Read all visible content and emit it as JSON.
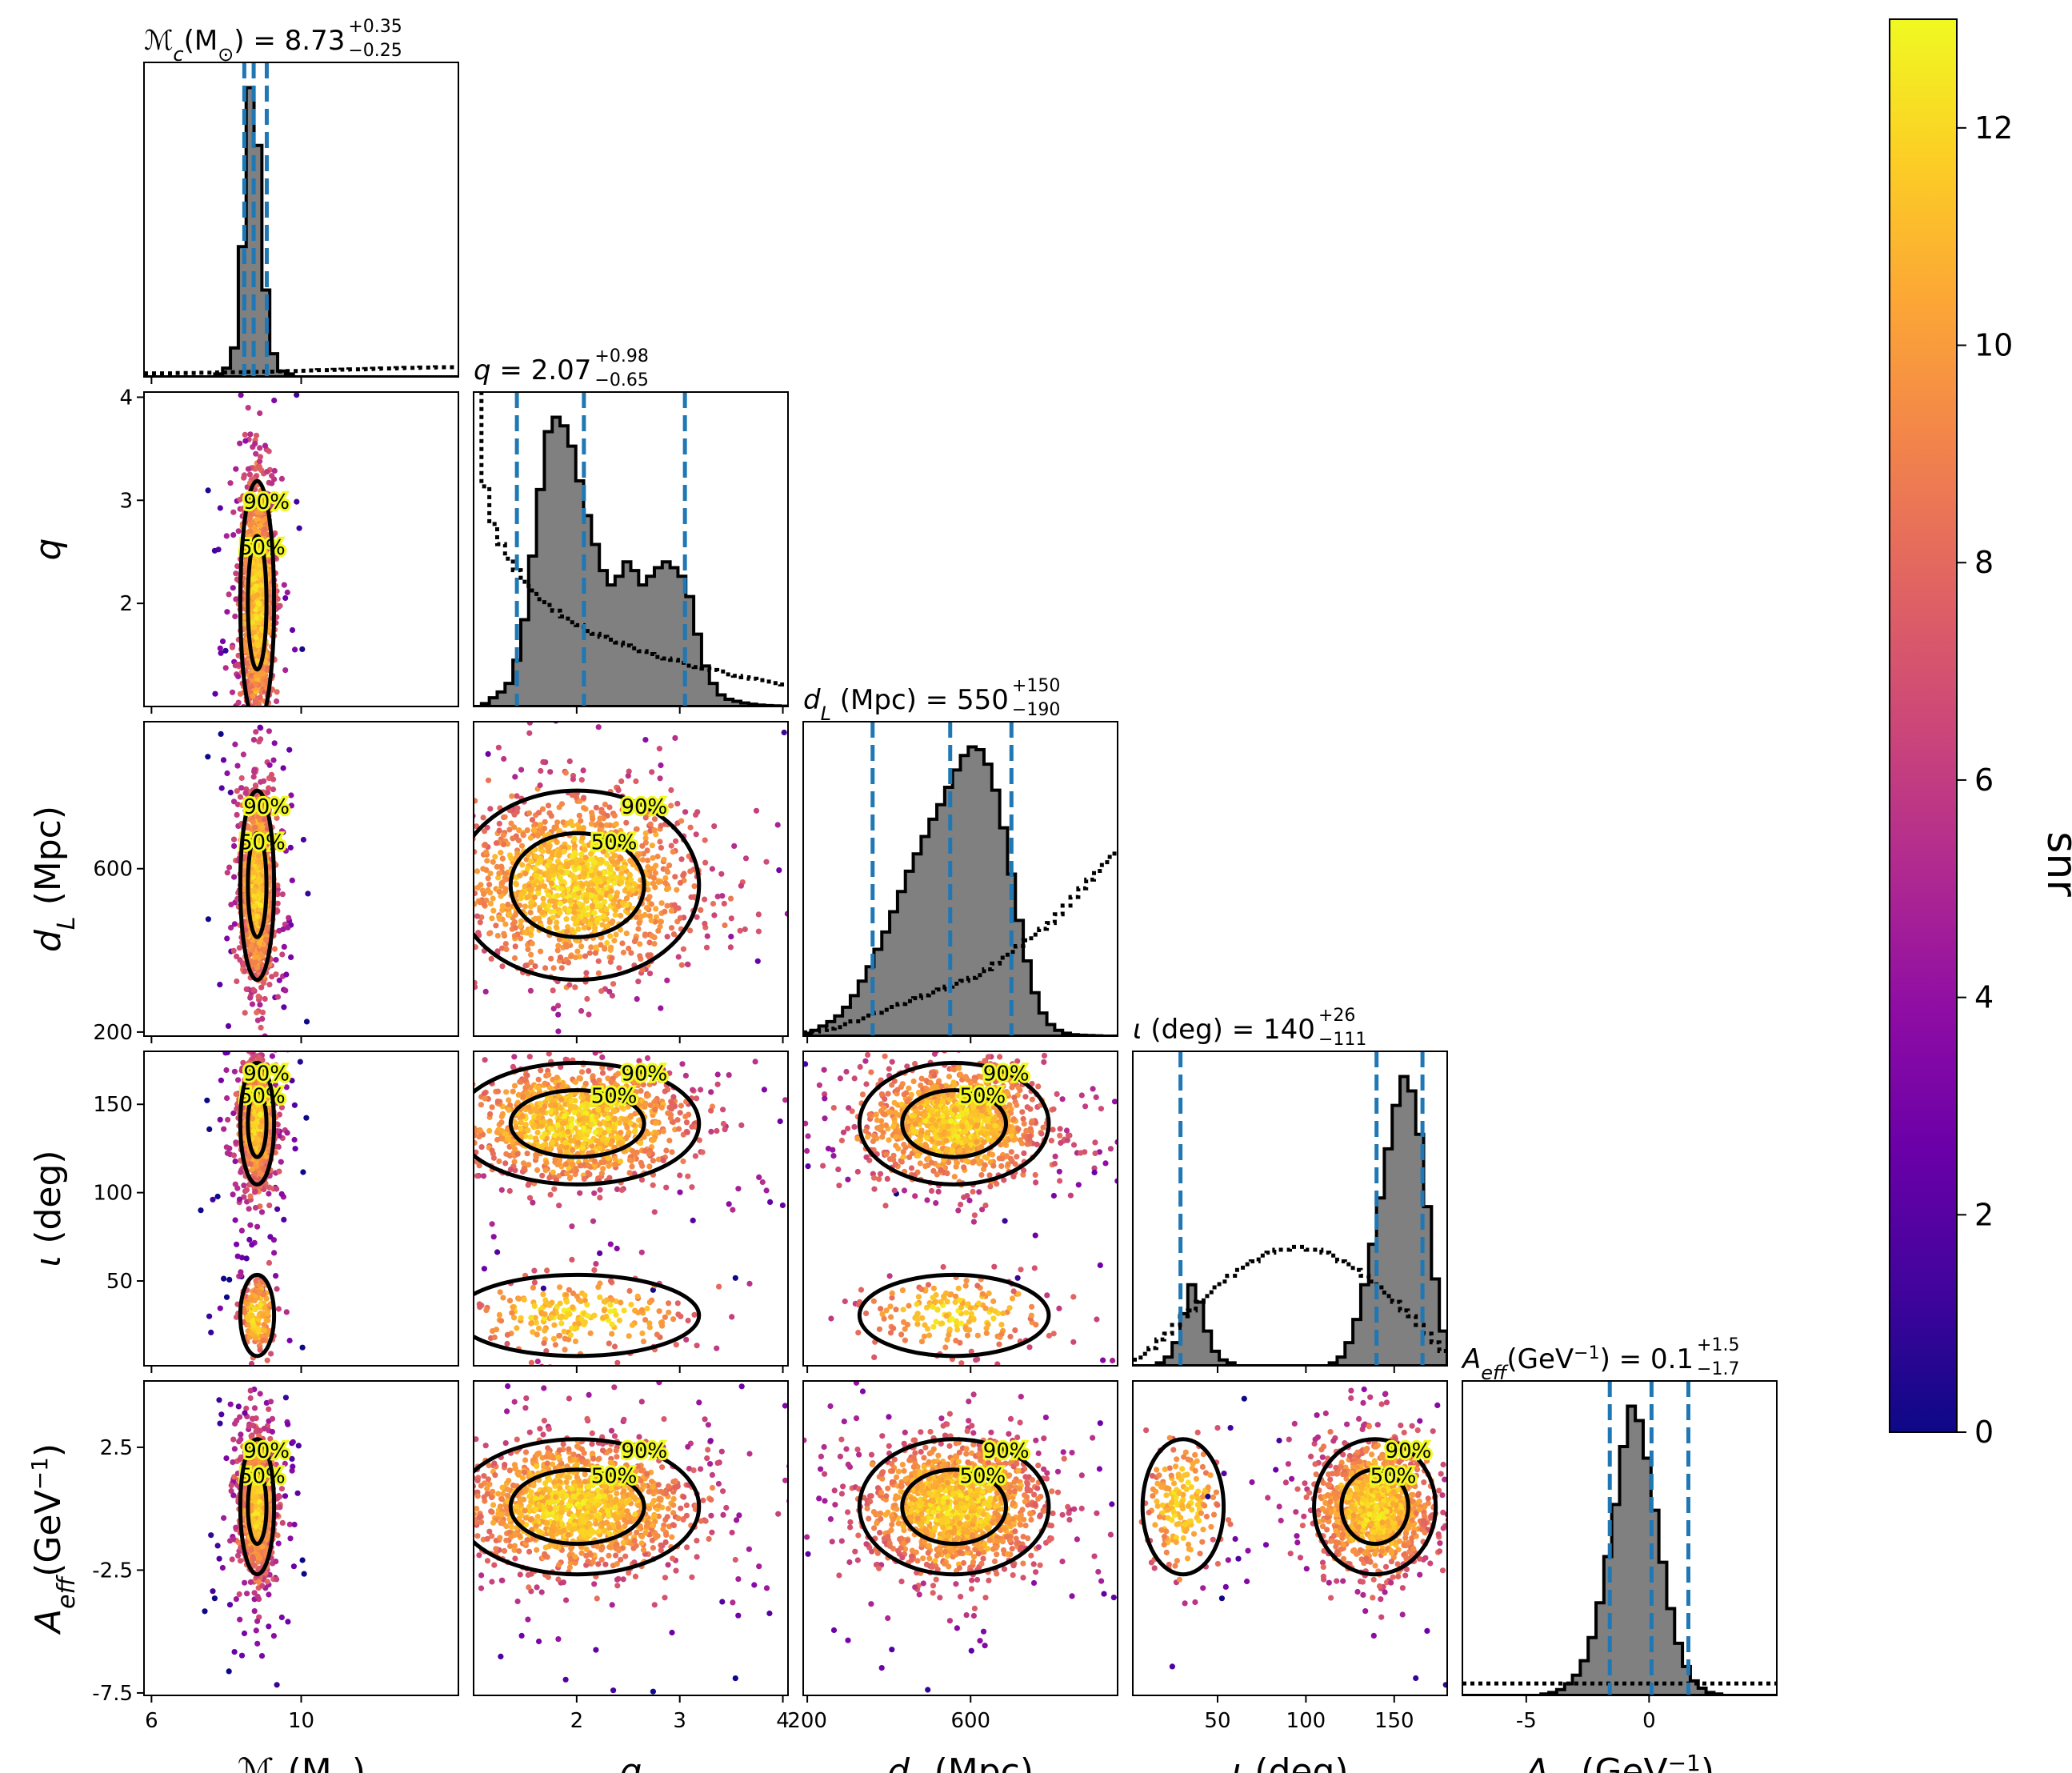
{
  "chart_data": {
    "type": "scatter",
    "variant": "corner-plot",
    "colormap": "plasma",
    "parameters": [
      {
        "id": "mc",
        "label_main": "ℳ",
        "label_sub": "c",
        "label_rest": "(M",
        "label_sun": "⊙",
        "label_close": ")",
        "median_text": "8.73",
        "err_plus": "+0.35",
        "err_minus": "−0.25",
        "range": [
          5.8,
          14.2
        ],
        "ticks": [
          6,
          10
        ],
        "median": 8.73,
        "lo": 8.48,
        "hi": 9.08
      },
      {
        "id": "q",
        "label_main": "q",
        "median_text": "2.07",
        "err_plus": "+0.98",
        "err_minus": "−0.65",
        "range": [
          1.0,
          4.05
        ],
        "ticks": [
          2,
          3,
          4
        ],
        "median": 2.07,
        "lo": 1.42,
        "hi": 3.05
      },
      {
        "id": "dl",
        "label_main": "d",
        "label_sub": "L",
        "label_rest": " (Mpc)",
        "median_text": "550",
        "err_plus": "+150",
        "err_minus": "−190",
        "range": [
          190,
          960
        ],
        "ticks": [
          200,
          600
        ],
        "median": 550,
        "lo": 360,
        "hi": 700
      },
      {
        "id": "iota",
        "label_main": "ι",
        "label_rest": " (deg)",
        "median_text": "140",
        "err_plus": "+26",
        "err_minus": "−111",
        "range": [
          2,
          180
        ],
        "ticks": [
          50,
          100,
          150
        ],
        "median": 140,
        "lo": 29,
        "hi": 166
      },
      {
        "id": "aeff",
        "label_main": "A",
        "label_sub": "eff",
        "label_rest": "(GeV",
        "label_sup": "−1",
        "label_close": ")",
        "median_text": "0.1",
        "err_plus": "+1.5",
        "err_minus": "−1.7",
        "range": [
          -7.6,
          5.2
        ],
        "ticks": [
          -5,
          0
        ],
        "ticks_y": [
          2.5,
          -2.5,
          -7.5
        ],
        "median": 0.1,
        "lo": -1.6,
        "hi": 1.6
      }
    ],
    "contour_levels": [
      "50%",
      "90%"
    ],
    "colorbar": {
      "label": "snr",
      "min": 0,
      "max": 13,
      "ticks": [
        0,
        2,
        4,
        6,
        8,
        10,
        12
      ]
    },
    "histograms": {
      "mc": {
        "posterior": [
          0,
          0,
          0,
          0,
          0,
          0,
          0,
          0,
          0,
          0.01,
          0.03,
          0.1,
          0.45,
          1.0,
          0.8,
          0.3,
          0.08,
          0.02,
          0.01,
          0,
          0,
          0,
          0,
          0,
          0,
          0,
          0,
          0,
          0,
          0,
          0,
          0,
          0,
          0,
          0,
          0,
          0,
          0,
          0,
          0
        ],
        "prior": [
          0.001,
          0.001,
          0.001,
          0.001,
          0.002,
          0.002,
          0.002,
          0.003,
          0.003,
          0.004,
          0.004,
          0.005,
          0.005,
          0.006,
          0.006,
          0.007,
          0.007,
          0.008,
          0.009,
          0.009,
          0.01,
          0.011,
          0.012,
          0.012,
          0.013,
          0.014,
          0.015,
          0.015,
          0.016,
          0.017,
          0.018,
          0.018,
          0.019,
          0.02,
          0.02,
          0.021,
          0.021,
          0.022,
          0.022,
          0.022
        ]
      },
      "q": {
        "posterior": [
          0,
          0.01,
          0.03,
          0.05,
          0.08,
          0.16,
          0.3,
          0.52,
          0.75,
          0.95,
          1.0,
          0.97,
          0.9,
          0.78,
          0.66,
          0.56,
          0.47,
          0.42,
          0.45,
          0.5,
          0.47,
          0.42,
          0.45,
          0.48,
          0.5,
          0.48,
          0.45,
          0.38,
          0.25,
          0.14,
          0.08,
          0.04,
          0.025,
          0.018,
          0.012,
          0.008,
          0.005,
          0.003,
          0.002,
          0.001
        ],
        "prior": [
          1.08,
          0.75,
          0.62,
          0.55,
          0.5,
          0.46,
          0.42,
          0.39,
          0.36,
          0.34,
          0.32,
          0.3,
          0.28,
          0.27,
          0.25,
          0.24,
          0.23,
          0.22,
          0.21,
          0.2,
          0.19,
          0.18,
          0.17,
          0.16,
          0.155,
          0.15,
          0.14,
          0.13,
          0.125,
          0.12,
          0.115,
          0.11,
          0.1,
          0.095,
          0.09,
          0.085,
          0.08,
          0.075,
          0.07,
          0.065
        ]
      },
      "dl": {
        "posterior": [
          0.01,
          0.02,
          0.035,
          0.05,
          0.07,
          0.1,
          0.14,
          0.19,
          0.24,
          0.3,
          0.36,
          0.43,
          0.5,
          0.57,
          0.63,
          0.69,
          0.75,
          0.8,
          0.86,
          0.92,
          0.97,
          1.0,
          0.99,
          0.94,
          0.85,
          0.72,
          0.56,
          0.4,
          0.26,
          0.15,
          0.08,
          0.04,
          0.02,
          0.01,
          0.005,
          0.003,
          0.002,
          0.001,
          0,
          0
        ],
        "prior": [
          0.002,
          0.005,
          0.01,
          0.015,
          0.02,
          0.03,
          0.04,
          0.05,
          0.06,
          0.07,
          0.08,
          0.09,
          0.1,
          0.11,
          0.12,
          0.13,
          0.14,
          0.15,
          0.16,
          0.17,
          0.18,
          0.19,
          0.2,
          0.22,
          0.24,
          0.26,
          0.28,
          0.3,
          0.32,
          0.34,
          0.36,
          0.38,
          0.41,
          0.44,
          0.47,
          0.5,
          0.53,
          0.56,
          0.59,
          0.62
        ]
      },
      "iota": {
        "posterior": [
          0,
          0,
          0,
          0.01,
          0.03,
          0.08,
          0.18,
          0.28,
          0.22,
          0.12,
          0.05,
          0.02,
          0.01,
          0,
          0,
          0,
          0,
          0,
          0,
          0,
          0,
          0,
          0,
          0,
          0,
          0.01,
          0.03,
          0.08,
          0.16,
          0.28,
          0.42,
          0.58,
          0.75,
          0.9,
          1.0,
          0.95,
          0.8,
          0.55,
          0.3,
          0.12
        ],
        "prior": [
          0.01,
          0.03,
          0.05,
          0.08,
          0.1,
          0.13,
          0.16,
          0.18,
          0.21,
          0.23,
          0.26,
          0.28,
          0.3,
          0.32,
          0.34,
          0.35,
          0.37,
          0.38,
          0.39,
          0.39,
          0.4,
          0.4,
          0.39,
          0.39,
          0.38,
          0.37,
          0.35,
          0.34,
          0.32,
          0.3,
          0.28,
          0.26,
          0.23,
          0.21,
          0.18,
          0.16,
          0.13,
          0.1,
          0.07,
          0.04
        ]
      },
      "aeff": {
        "posterior": [
          0,
          0,
          0,
          0,
          0,
          0,
          0,
          0,
          0,
          0,
          0.005,
          0.01,
          0.02,
          0.04,
          0.07,
          0.12,
          0.2,
          0.32,
          0.48,
          0.66,
          0.86,
          1.0,
          0.95,
          0.82,
          0.64,
          0.46,
          0.3,
          0.18,
          0.1,
          0.05,
          0.025,
          0.01,
          0.005,
          0,
          0,
          0,
          0,
          0,
          0,
          0
        ],
        "prior": [
          0.03,
          0.03,
          0.03,
          0.03,
          0.03,
          0.03,
          0.03,
          0.03,
          0.03,
          0.03,
          0.03,
          0.03,
          0.03,
          0.03,
          0.03,
          0.03,
          0.03,
          0.03,
          0.03,
          0.03,
          0.03,
          0.03,
          0.03,
          0.03,
          0.03,
          0.03,
          0.03,
          0.03,
          0.03,
          0.03,
          0.03,
          0.03,
          0.03,
          0.03,
          0.03,
          0.03,
          0.03,
          0.03,
          0.03,
          0.03
        ]
      }
    }
  }
}
